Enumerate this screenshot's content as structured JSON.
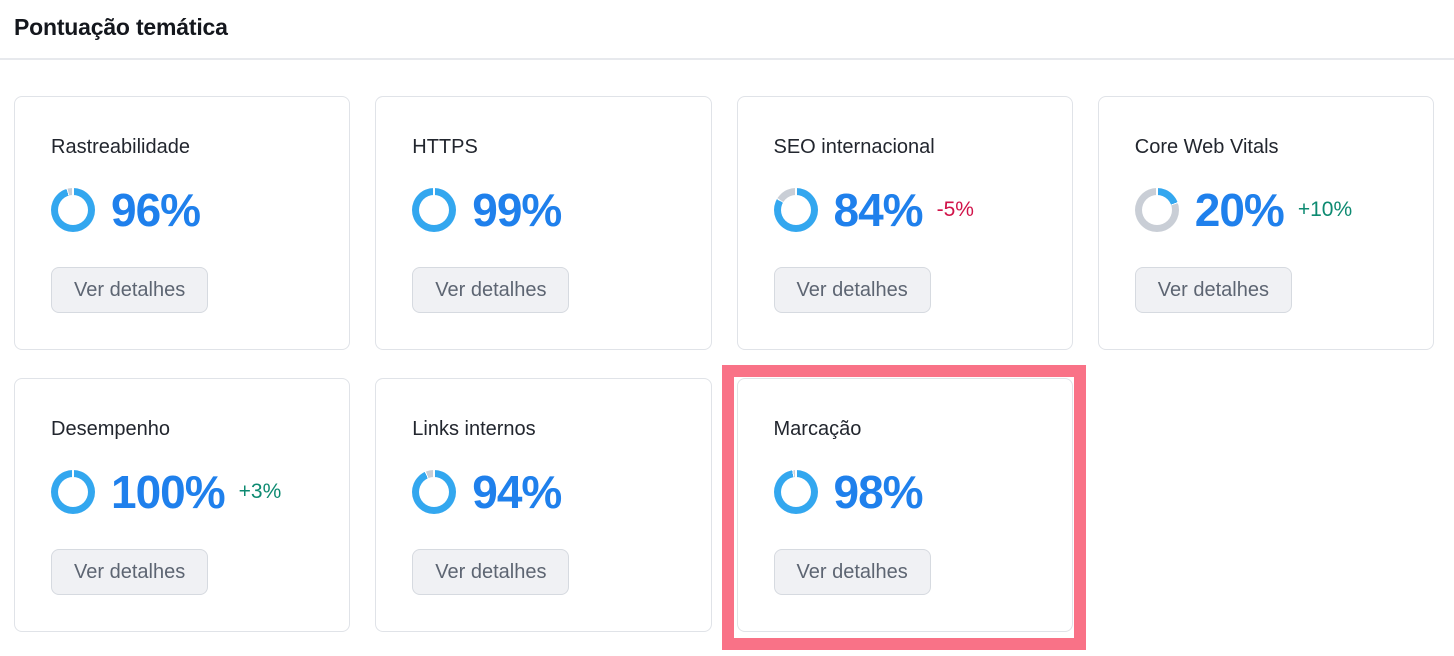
{
  "header": {
    "title": "Pontuação temática"
  },
  "colors": {
    "score_text": "#1f80ec",
    "donut_fill": "#33a7ef",
    "donut_rest": "#c9ced6",
    "delta_negative": "#d11349",
    "delta_positive": "#0d8a71",
    "highlight": "#f97287",
    "button_bg": "#f0f1f4",
    "button_text": "#5d6572",
    "card_border": "#e0e3e8"
  },
  "cards": [
    {
      "title": "Rastreabilidade",
      "score_pct": 96,
      "score_label": "96%",
      "delta": "",
      "button_label": "Ver detalhes"
    },
    {
      "title": "HTTPS",
      "score_pct": 99,
      "score_label": "99%",
      "delta": "",
      "button_label": "Ver detalhes"
    },
    {
      "title": "SEO internacional",
      "score_pct": 84,
      "score_label": "84%",
      "delta": "-5%",
      "delta_direction": "down",
      "button_label": "Ver detalhes"
    },
    {
      "title": "Core Web Vitals",
      "score_pct": 20,
      "score_label": "20%",
      "delta": "+10%",
      "delta_direction": "up",
      "button_label": "Ver detalhes"
    },
    {
      "title": "Desempenho",
      "score_pct": 100,
      "score_label": "100%",
      "delta": "+3%",
      "delta_direction": "up",
      "button_label": "Ver detalhes"
    },
    {
      "title": "Links internos",
      "score_pct": 94,
      "score_label": "94%",
      "delta": "",
      "button_label": "Ver detalhes"
    },
    {
      "title": "Marcação",
      "score_pct": 98,
      "score_label": "98%",
      "delta": "",
      "button_label": "Ver detalhes",
      "highlighted": true
    }
  ],
  "highlight": {
    "target_card": "Marcação"
  }
}
